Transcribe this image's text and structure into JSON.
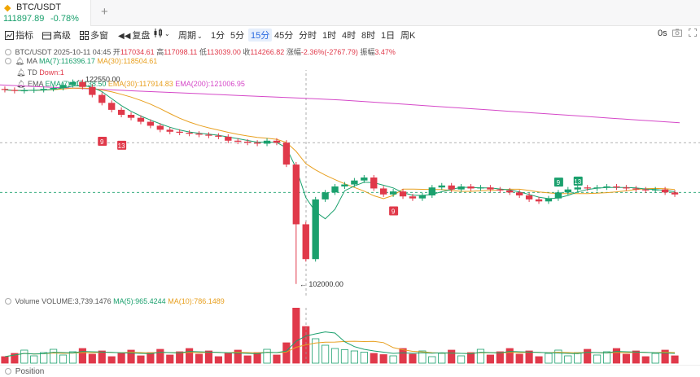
{
  "tab": {
    "pair": "BTC/USDT",
    "price": "111897.89",
    "change": "-0.78%",
    "add_label": "+"
  },
  "toolbar": {
    "indicators": "指标",
    "advanced": "高级",
    "multi_window": "多窗",
    "replay": "复盘",
    "period": "周期",
    "intervals": [
      "1分",
      "5分",
      "15分",
      "45分",
      "分时",
      "1时",
      "4时",
      "8时",
      "1日",
      "周K"
    ],
    "active_interval": "15分",
    "latency": "0s"
  },
  "ohlc": {
    "symbol": "BTC/USDT",
    "time": "2025-10-11 04:45",
    "open_label": "开",
    "open": "117034.61",
    "high_label": "高",
    "high": "117098.11",
    "low_label": "低",
    "low": "113039.00",
    "close_label": "收",
    "close": "114266.82",
    "change_label": "涨幅",
    "change": "-2.36%(-2767.79)",
    "amplitude_label": "振幅",
    "amplitude": "3.47%"
  },
  "ma": {
    "label": "MA",
    "ma7": "MA(7):116396.17",
    "ma30": "MA(30):118504.61"
  },
  "td": {
    "label": "TD",
    "value": "Down:1"
  },
  "ema": {
    "label": "EMA",
    "ema7": "EMA(7):116138.50",
    "ema30": "EMA(30):117914.83",
    "ema200": "EMA(200):121006.95"
  },
  "markers": {
    "high": "122550.00",
    "low": "102000.00",
    "td_labels": [
      "9",
      "13",
      "9",
      "9",
      "13"
    ]
  },
  "volume": {
    "label": "Volume",
    "value": "VOLUME:3,739.1476",
    "ma5": "MA(5):965.4244",
    "ma10": "MA(10):786.1489"
  },
  "position": {
    "label": "Position"
  },
  "colors": {
    "up": "#1aa06d",
    "down": "#e0394a",
    "ma7": "#1aa06d",
    "ma30": "#e8a020",
    "ema200": "#d548c8",
    "active": "#2c6be0"
  },
  "chart_data": {
    "type": "candlestick",
    "symbol": "BTC/USDT",
    "interval": "15分",
    "high_marker": 122550.0,
    "low_marker": 102000.0,
    "candles_close_approx": [
      121500,
      121400,
      121450,
      121500,
      121600,
      121700,
      122000,
      122300,
      121800,
      121000,
      120200,
      119500,
      119000,
      118700,
      118300,
      117900,
      117500,
      117300,
      117200,
      117100,
      117000,
      116900,
      116800,
      116400,
      116300,
      116200,
      116100,
      116400,
      116200,
      114000,
      108000,
      104500,
      110500,
      111200,
      111800,
      112000,
      112400,
      112700,
      111600,
      111000,
      111300,
      110800,
      110600,
      110900,
      111700,
      111900,
      111500,
      111800,
      111600,
      111700,
      111500,
      111400,
      111200,
      110900,
      110500,
      110300,
      110600,
      111200,
      111500,
      111700,
      111600,
      111700,
      111800,
      111700,
      111600,
      111500,
      111400,
      111500,
      111200,
      111000
    ]
  }
}
